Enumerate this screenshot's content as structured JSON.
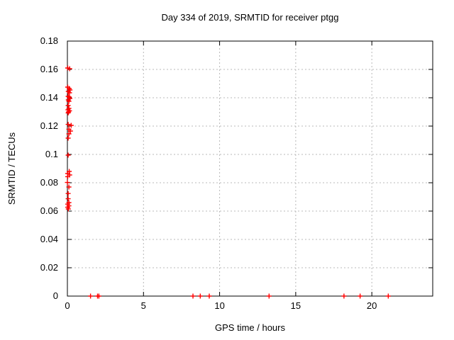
{
  "chart_data": {
    "type": "scatter",
    "title": "Day 334 of 2019, SRMTID for receiver ptgg",
    "xlabel": "GPS time / hours",
    "ylabel": "SRMTID / TECUs",
    "xlim": [
      0,
      24
    ],
    "ylim": [
      0,
      0.18
    ],
    "grid": true,
    "legend_position": "none",
    "x_ticks": [
      {
        "v": 0,
        "label": "0"
      },
      {
        "v": 5,
        "label": "5"
      },
      {
        "v": 10,
        "label": "10"
      },
      {
        "v": 15,
        "label": "15"
      },
      {
        "v": 20,
        "label": "20"
      }
    ],
    "y_ticks": [
      {
        "v": 0,
        "label": "0"
      },
      {
        "v": 0.02,
        "label": "0.02"
      },
      {
        "v": 0.04,
        "label": "0.04"
      },
      {
        "v": 0.06,
        "label": "0.06"
      },
      {
        "v": 0.08,
        "label": "0.08"
      },
      {
        "v": 0.1,
        "label": "0.1"
      },
      {
        "v": 0.12,
        "label": "0.12"
      },
      {
        "v": 0.14,
        "label": "0.14"
      },
      {
        "v": 0.16,
        "label": "0.16"
      },
      {
        "v": 0.18,
        "label": "0.18"
      }
    ],
    "colors": {
      "marker": "#ff0000",
      "axis": "#000000",
      "grid": "#b8b8b8",
      "background": "#ffffff",
      "text": "#000000"
    },
    "marker": {
      "shape": "plus",
      "size": 7
    },
    "series": [
      {
        "name": "SRMTID",
        "points": [
          [
            0.02,
            0.161
          ],
          [
            0.15,
            0.1605
          ],
          [
            0.02,
            0.1475
          ],
          [
            0.12,
            0.1465
          ],
          [
            0.17,
            0.1455
          ],
          [
            0.06,
            0.1445
          ],
          [
            0.14,
            0.1435
          ],
          [
            0.05,
            0.141
          ],
          [
            0.12,
            0.1405
          ],
          [
            0.16,
            0.1395
          ],
          [
            0.06,
            0.1385
          ],
          [
            0.1,
            0.1375
          ],
          [
            0.05,
            0.1345
          ],
          [
            0.1,
            0.1325
          ],
          [
            0.04,
            0.1315
          ],
          [
            0.14,
            0.1308
          ],
          [
            0.08,
            0.13
          ],
          [
            0.05,
            0.1293
          ],
          [
            0.05,
            0.1212
          ],
          [
            0.25,
            0.1205
          ],
          [
            0.1,
            0.1178
          ],
          [
            0.2,
            0.1165
          ],
          [
            0.1,
            0.1145
          ],
          [
            0.05,
            0.1115
          ],
          [
            0.05,
            0.0995
          ],
          [
            0.12,
            0.088
          ],
          [
            0.02,
            0.0865
          ],
          [
            0.15,
            0.0855
          ],
          [
            0.02,
            0.0843
          ],
          [
            0.0,
            0.0802
          ],
          [
            0.1,
            0.077
          ],
          [
            0.05,
            0.0724
          ],
          [
            0.05,
            0.0687
          ],
          [
            0.1,
            0.066
          ],
          [
            0.02,
            0.0649
          ],
          [
            0.1,
            0.0637
          ],
          [
            0.02,
            0.0627
          ],
          [
            0.06,
            0.0615
          ],
          [
            1.52,
            0.0
          ],
          [
            1.98,
            0.0
          ],
          [
            2.07,
            0.0
          ],
          [
            8.25,
            0.0
          ],
          [
            8.73,
            0.0
          ],
          [
            9.32,
            0.0
          ],
          [
            13.25,
            0.0
          ],
          [
            18.17,
            0.0
          ],
          [
            19.23,
            0.0
          ],
          [
            21.08,
            0.0
          ]
        ]
      }
    ]
  }
}
